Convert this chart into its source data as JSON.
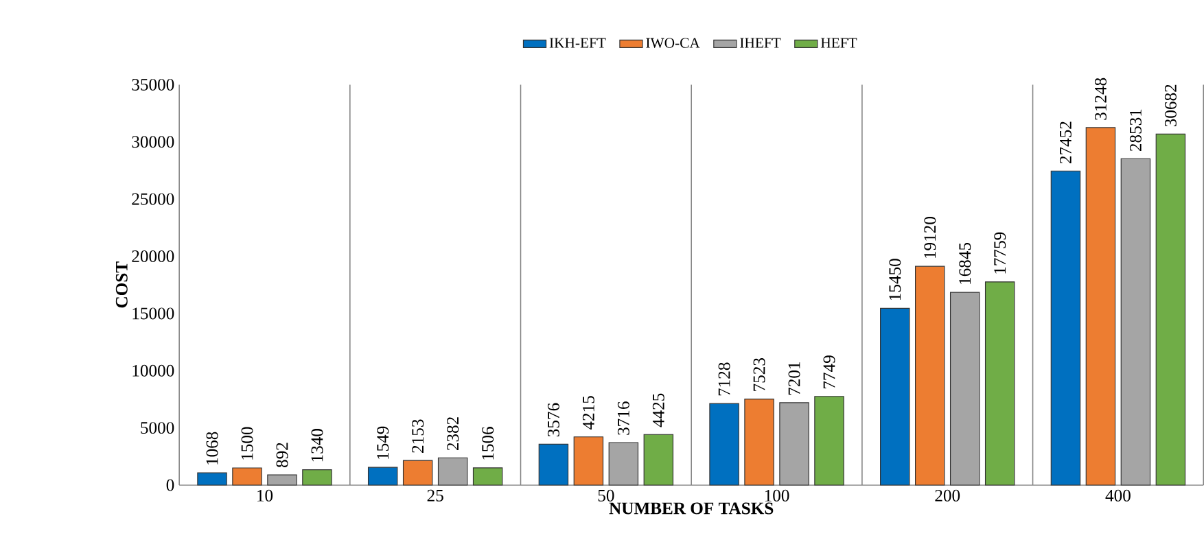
{
  "chart_data": {
    "type": "bar",
    "xlabel": "NUMBER OF TASKS",
    "ylabel": "COST",
    "categories": [
      "10",
      "25",
      "50",
      "100",
      "200",
      "400"
    ],
    "series": [
      {
        "name": "IKH-EFT",
        "color": "#0070c0",
        "values": [
          1068,
          1549,
          3576,
          7128,
          15450,
          27452
        ]
      },
      {
        "name": "IWO-CA",
        "color": "#ed7d31",
        "values": [
          1500,
          2153,
          4215,
          7523,
          19120,
          31248
        ]
      },
      {
        "name": "IHEFT",
        "color": "#a5a5a5",
        "values": [
          892,
          2382,
          3716,
          7201,
          16845,
          28531
        ]
      },
      {
        "name": "HEFT",
        "color": "#70ad47",
        "values": [
          1340,
          1506,
          4425,
          7749,
          17759,
          30682
        ]
      }
    ],
    "ylim": [
      0,
      35000
    ],
    "yticks": [
      0,
      5000,
      10000,
      15000,
      20000,
      25000,
      30000,
      35000
    ],
    "grid": "x",
    "legend": "top",
    "data_labels": true
  }
}
